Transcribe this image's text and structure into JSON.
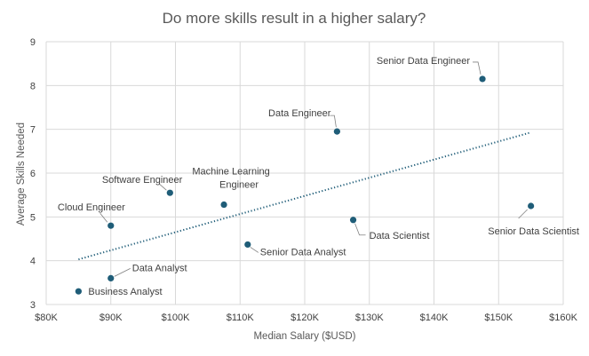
{
  "chart_data": {
    "type": "scatter",
    "title": "Do more skills result in a higher salary?",
    "xlabel": "Median Salary ($USD)",
    "ylabel": "Average Skills Needed",
    "xlim": [
      80000,
      160000
    ],
    "ylim": [
      3,
      9
    ],
    "x_ticks": [
      {
        "value": 80000,
        "label": "$80K"
      },
      {
        "value": 90000,
        "label": "$90K"
      },
      {
        "value": 100000,
        "label": "$100K"
      },
      {
        "value": 110000,
        "label": "$110K"
      },
      {
        "value": 120000,
        "label": "$120K"
      },
      {
        "value": 130000,
        "label": "$130K"
      },
      {
        "value": 140000,
        "label": "$140K"
      },
      {
        "value": 150000,
        "label": "$150K"
      },
      {
        "value": 160000,
        "label": "$160K"
      }
    ],
    "y_ticks": [
      {
        "value": 3,
        "label": "3"
      },
      {
        "value": 4,
        "label": "4"
      },
      {
        "value": 5,
        "label": "5"
      },
      {
        "value": 6,
        "label": "6"
      },
      {
        "value": 7,
        "label": "7"
      },
      {
        "value": 8,
        "label": "8"
      },
      {
        "value": 9,
        "label": "9"
      }
    ],
    "grid": true,
    "marker_color": "#1f5d78",
    "points": [
      {
        "label": "Business Analyst",
        "x": 85000,
        "y": 3.3
      },
      {
        "label": "Data Analyst",
        "x": 90000,
        "y": 3.6
      },
      {
        "label": "Cloud Engineer",
        "x": 90000,
        "y": 4.8
      },
      {
        "label": "Software Engineer",
        "x": 99150,
        "y": 5.55
      },
      {
        "label": "Machine Learning Engineer",
        "x": 107500,
        "y": 5.28
      },
      {
        "label": "Senior Data Analyst",
        "x": 111175,
        "y": 4.37
      },
      {
        "label": "Data Engineer",
        "x": 125000,
        "y": 6.95
      },
      {
        "label": "Data Scientist",
        "x": 127500,
        "y": 4.93
      },
      {
        "label": "Senior Data Engineer",
        "x": 147500,
        "y": 8.15
      },
      {
        "label": "Senior Data Scientist",
        "x": 155000,
        "y": 5.25
      }
    ],
    "trendline": {
      "type": "linear",
      "from": {
        "x": 85000,
        "y": 4.03
      },
      "to": {
        "x": 155000,
        "y": 6.93
      }
    }
  }
}
